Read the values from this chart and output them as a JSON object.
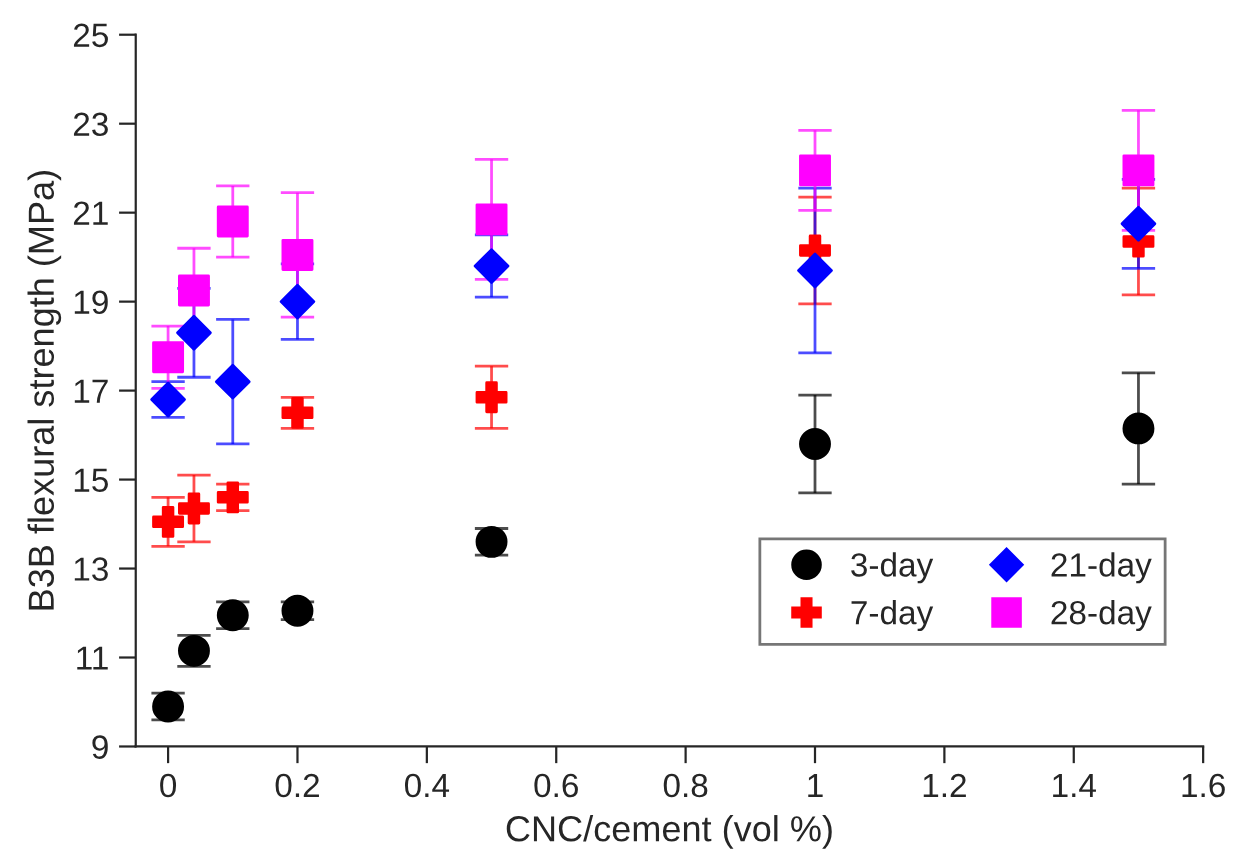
{
  "chart_data": {
    "type": "scatter",
    "xlabel": "CNC/cement (vol %)",
    "ylabel": "B3B flexural strength (MPa)",
    "xlim": [
      -0.05,
      1.6
    ],
    "xticks": [
      0,
      0.2,
      0.4,
      0.6,
      0.8,
      1,
      1.2,
      1.4,
      1.6
    ],
    "ylim": [
      9,
      25
    ],
    "yticks": [
      9,
      11,
      13,
      15,
      17,
      19,
      21,
      23,
      25
    ],
    "grid": false,
    "legend": "bottom right",
    "series": [
      {
        "name": "3-day",
        "color": "#000000",
        "marker": "circle",
        "x": [
          0,
          0.04,
          0.1,
          0.2,
          0.5,
          1.0,
          1.5
        ],
        "values": [
          9.9,
          11.15,
          11.95,
          12.05,
          13.6,
          15.8,
          16.15
        ],
        "errors": [
          0.3,
          0.35,
          0.3,
          0.2,
          0.3,
          1.1,
          1.25
        ]
      },
      {
        "name": "7-day",
        "color": "#ff0000",
        "marker": "cross",
        "x": [
          0,
          0.04,
          0.1,
          0.2,
          0.5,
          1.0,
          1.5
        ],
        "values": [
          14.05,
          14.35,
          14.6,
          16.5,
          16.85,
          20.15,
          20.35
        ],
        "errors": [
          0.55,
          0.75,
          0.3,
          0.35,
          0.7,
          1.2,
          1.2
        ]
      },
      {
        "name": "21-day",
        "color": "#0000ff",
        "marker": "diamond",
        "x": [
          0,
          0.04,
          0.1,
          0.2,
          0.5,
          1.0,
          1.5
        ],
        "values": [
          16.8,
          18.3,
          17.2,
          19.0,
          19.8,
          19.7,
          20.75
        ],
        "errors": [
          0.4,
          1.0,
          1.4,
          0.85,
          0.7,
          1.85,
          1.0
        ]
      },
      {
        "name": "28-day",
        "color": "#ff00ff",
        "marker": "square",
        "x": [
          0,
          0.04,
          0.1,
          0.2,
          0.5,
          1.0,
          1.5
        ],
        "values": [
          17.75,
          19.25,
          20.8,
          20.05,
          20.85,
          21.95,
          21.95
        ],
        "errors": [
          0.7,
          0.95,
          0.8,
          1.4,
          1.35,
          0.9,
          1.35
        ]
      }
    ]
  }
}
